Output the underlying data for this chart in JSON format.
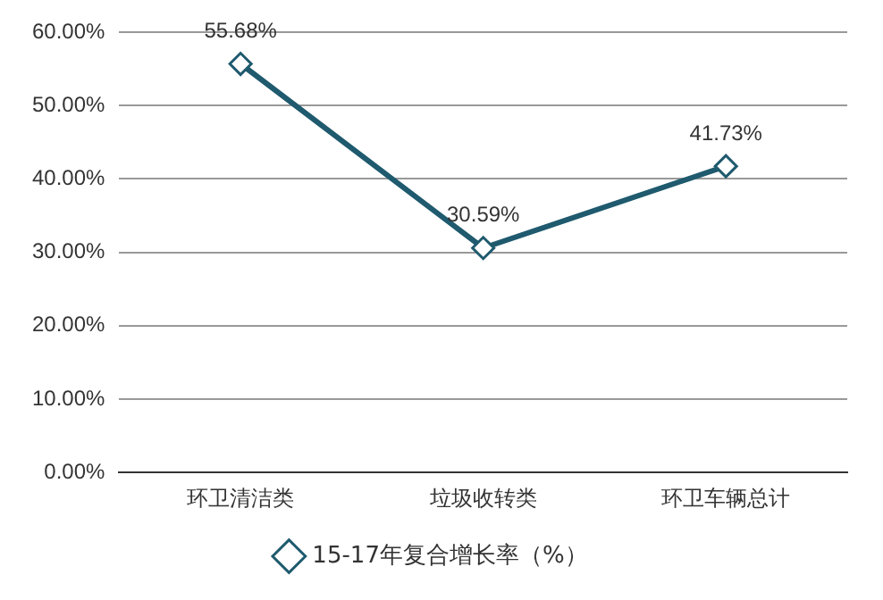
{
  "chart_data": {
    "type": "line",
    "categories": [
      "环卫清洁类",
      "垃圾收转类",
      "环卫车辆总计"
    ],
    "series": [
      {
        "name": "15-17年复合增长率（%）",
        "color": "#1f5a6e",
        "values": [
          55.68,
          30.59,
          41.73
        ],
        "value_labels": [
          "55.68%",
          "30.59%",
          "41.73%"
        ]
      }
    ],
    "ylim": [
      0,
      60
    ],
    "yticks": [
      {
        "value": 0,
        "label": "0.00%"
      },
      {
        "value": 10,
        "label": "10.00%"
      },
      {
        "value": 20,
        "label": "20.00%"
      },
      {
        "value": 30,
        "label": "30.00%"
      },
      {
        "value": 40,
        "label": "40.00%"
      },
      {
        "value": 50,
        "label": "50.00%"
      },
      {
        "value": 60,
        "label": "60.00%"
      }
    ],
    "grid": "y",
    "legend": "bottom",
    "marker": "diamond",
    "line_style": "solid"
  }
}
